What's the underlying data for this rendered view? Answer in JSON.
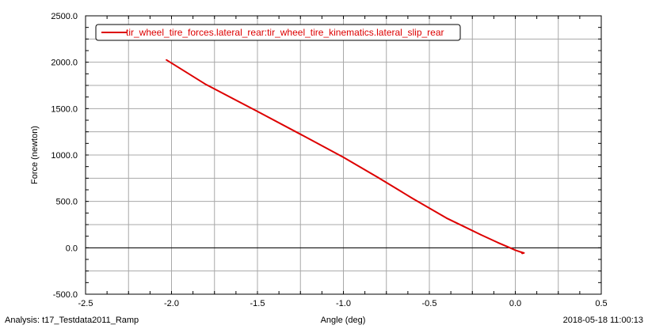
{
  "chart_data": {
    "type": "line",
    "xlabel": "Angle (deg)",
    "ylabel": "Force (newton)",
    "xlim": [
      -2.5,
      0.5
    ],
    "ylim": [
      -500.0,
      2500.0
    ],
    "x_ticks": [
      "-2.5",
      "-2.0",
      "-1.5",
      "-1.0",
      "-0.5",
      "0.0",
      "0.5"
    ],
    "y_ticks": [
      "2500.0",
      "2000.0",
      "1500.0",
      "1000.0",
      "500.0",
      "0.0",
      "-500.0"
    ],
    "grid": true,
    "legend_position": "top-left",
    "series": [
      {
        "name": "tir_wheel_tire_forces.lateral_rear:tir_wheel_tire_kinematics.lateral_slip_rear",
        "color": "#dd0000",
        "x": [
          -2.03,
          -1.8,
          -1.5,
          -1.2,
          -1.0,
          -0.8,
          -0.6,
          -0.4,
          -0.3,
          -0.2,
          -0.1,
          -0.05,
          0.0,
          0.03,
          0.05,
          0.04,
          0.035
        ],
        "y": [
          2025,
          1760,
          1470,
          1175,
          975,
          760,
          535,
          320,
          230,
          140,
          55,
          15,
          -25,
          -45,
          -55,
          -60,
          -45
        ]
      }
    ]
  },
  "footer": {
    "analysis": "Analysis:  t17_Testdata2011_Ramp",
    "x_axis_label": "Angle (deg)",
    "timestamp": "2018-05-18 11:00:13"
  }
}
